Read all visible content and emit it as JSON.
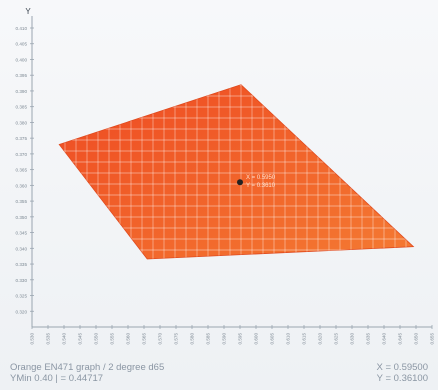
{
  "chart_data": {
    "type": "scatter",
    "title": "Orange EN471 graph / 2 degree d65",
    "subtitle": "YMin 0.40 | = 0.44717",
    "ylabel": "Y",
    "xlabel": "",
    "xlim": [
      0.53,
      0.655
    ],
    "ylim": [
      0.315,
      0.41
    ],
    "x_ticks": [
      "0.530",
      "0.535",
      "0.540",
      "0.545",
      "0.550",
      "0.555",
      "0.560",
      "0.565",
      "0.570",
      "0.575",
      "0.580",
      "0.585",
      "0.590",
      "0.595",
      "0.600",
      "0.605",
      "0.610",
      "0.615",
      "0.620",
      "0.625",
      "0.630",
      "0.635",
      "0.640",
      "0.645",
      "0.650",
      "0.655"
    ],
    "y_ticks": [
      "0.410",
      "0.405",
      "0.400",
      "0.395",
      "0.390",
      "0.385",
      "0.380",
      "0.375",
      "0.370",
      "0.365",
      "0.360",
      "0.355",
      "0.350",
      "0.345",
      "0.340",
      "0.335",
      "0.330",
      "0.325",
      "0.320"
    ],
    "region": {
      "name": "Orange EN471",
      "color": "#f05a28",
      "polygon": [
        {
          "x": 0.5385,
          "y": 0.373
        },
        {
          "x": 0.5953,
          "y": 0.392
        },
        {
          "x": 0.6492,
          "y": 0.3405
        },
        {
          "x": 0.566,
          "y": 0.3366
        }
      ]
    },
    "point": {
      "x": 0.595,
      "y": 0.361,
      "label_x": "X = 0.5950",
      "label_y": "Y = 0.3610",
      "color": "#222222"
    },
    "grid": true
  },
  "readout": {
    "x": "X = 0.59500",
    "y": "Y = 0.36100"
  }
}
